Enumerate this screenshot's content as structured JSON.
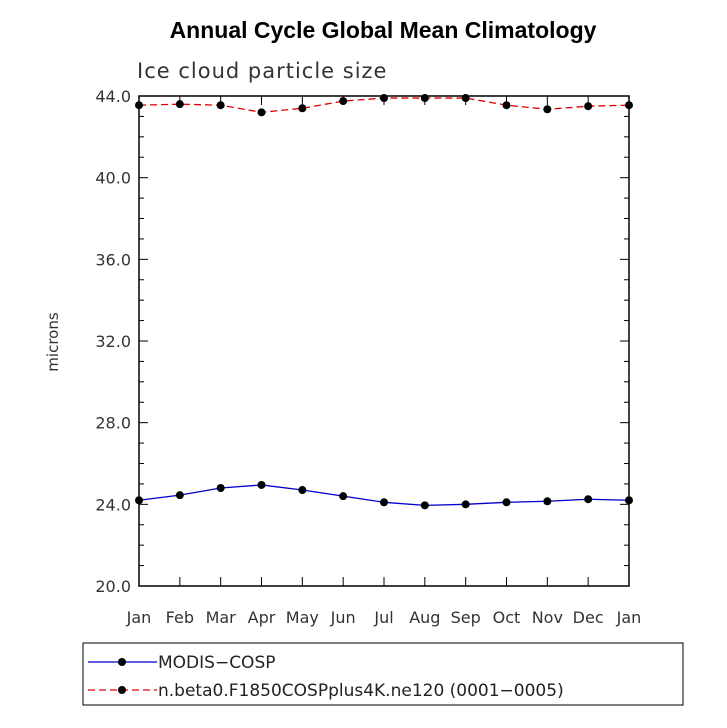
{
  "chart_data": {
    "type": "line",
    "title": "Annual Cycle Global Mean Climatology",
    "subtitle": "Ice cloud particle size",
    "xlabel": "",
    "ylabel": "microns",
    "categories": [
      "Jan",
      "Feb",
      "Mar",
      "Apr",
      "May",
      "Jun",
      "Jul",
      "Aug",
      "Sep",
      "Oct",
      "Nov",
      "Dec",
      "Jan"
    ],
    "ylim": [
      20.0,
      44.0
    ],
    "yticks": [
      "20.0",
      "24.0",
      "28.0",
      "32.0",
      "36.0",
      "40.0",
      "44.0"
    ],
    "grid": false,
    "legend_position": "bottom",
    "series": [
      {
        "name": "MODIS−COSP",
        "color": "#0000cc",
        "dash": "solid",
        "values": [
          24.2,
          24.45,
          24.8,
          24.95,
          24.7,
          24.4,
          24.1,
          23.95,
          24.0,
          24.1,
          24.15,
          24.25,
          24.2
        ]
      },
      {
        "name": "n.beta0.F1850COSPplus4K.ne120 (0001−0005)",
        "color": "#e00000",
        "dash": "dashed",
        "values": [
          43.55,
          43.6,
          43.55,
          43.2,
          43.4,
          43.75,
          43.9,
          43.9,
          43.9,
          43.55,
          43.35,
          43.5,
          43.55
        ]
      }
    ]
  }
}
